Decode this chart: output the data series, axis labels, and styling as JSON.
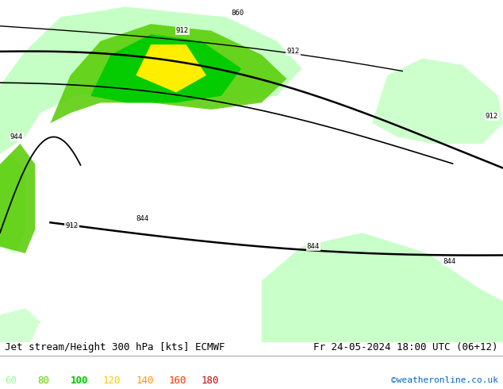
{
  "title_left": "Jet stream/Height 300 hPa [kts] ECMWF",
  "title_right": "Fr 24-05-2024 18:00 UTC (06+12)",
  "credit": "©weatheronline.co.uk",
  "legend_values": [
    60,
    80,
    100,
    120,
    140,
    160,
    180
  ],
  "legend_colors": [
    "#99ff99",
    "#66cc00",
    "#00cc00",
    "#ffcc00",
    "#ff9900",
    "#ff3300",
    "#cc0000"
  ],
  "background_color": "#ffffff",
  "map_bg": "#d0e8f0",
  "figsize": [
    6.34,
    4.9
  ],
  "dpi": 100,
  "title_fontsize": 9,
  "legend_fontsize": 9,
  "credit_color": "#0066cc"
}
